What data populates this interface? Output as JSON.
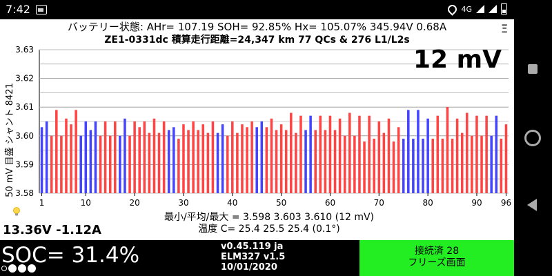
{
  "status_bar": {
    "time": "7:42",
    "network": "4G"
  },
  "header": {
    "line1": "バッテリー状態:  AHr= 107.19  SOH= 92.85%   Hx= 105.07%   345.94V  0.68A",
    "line2": "ZE1-0331dc 積算走行距離=24,347 km  77 QCs & 276 L1/L2s"
  },
  "menu_icon": "Ξ",
  "chart_data": {
    "type": "bar",
    "ylabel": "50 mV 目盛  シャント 8421",
    "ylim": [
      3.58,
      3.63
    ],
    "yticks": [
      "3.58",
      "3.59",
      "3.60",
      "3.61",
      "3.62",
      "3.63"
    ],
    "xticks": [
      1,
      10,
      20,
      30,
      40,
      50,
      60,
      70,
      80,
      90,
      96
    ],
    "overlay_label": "12 mV",
    "colors": {
      "red": "#ff4444",
      "blue": "#4444ff"
    },
    "pair_colors": [
      "blue",
      "red",
      "red",
      "red",
      "blue",
      "blue",
      "red",
      "red",
      "blue",
      "red",
      "red",
      "red",
      "red",
      "blue",
      "red",
      "red",
      "red",
      "red",
      "blue",
      "red",
      "red",
      "red",
      "blue",
      "red",
      "red",
      "red",
      "red",
      "blue",
      "red",
      "red",
      "red",
      "red",
      "red",
      "red",
      "red",
      "red",
      "red",
      "blue",
      "blue",
      "blue",
      "red",
      "red",
      "red",
      "red",
      "red",
      "red",
      "blue",
      "red"
    ],
    "cell_values": [
      3.603,
      3.605,
      3.6,
      3.609,
      3.6,
      3.606,
      3.604,
      3.609,
      3.6,
      3.605,
      3.602,
      3.605,
      3.6,
      3.605,
      3.6,
      3.605,
      3.6,
      3.606,
      3.6,
      3.605,
      3.603,
      3.605,
      3.601,
      3.606,
      3.601,
      3.605,
      3.602,
      3.603,
      3.599,
      3.604,
      3.602,
      3.605,
      3.602,
      3.604,
      3.601,
      3.605,
      3.601,
      3.604,
      3.6,
      3.605,
      3.601,
      3.604,
      3.603,
      3.605,
      3.603,
      3.605,
      3.603,
      3.606,
      3.602,
      3.604,
      3.602,
      3.608,
      3.601,
      3.607,
      3.602,
      3.607,
      3.602,
      3.607,
      3.602,
      3.607,
      3.602,
      3.606,
      3.6,
      3.608,
      3.6,
      3.607,
      3.598,
      3.607,
      3.599,
      3.605,
      3.601,
      3.606,
      3.598,
      3.603,
      3.599,
      3.609,
      3.599,
      3.609,
      3.599,
      3.606,
      3.599,
      3.607,
      3.599,
      3.61,
      3.599,
      3.606,
      3.601,
      3.608,
      3.6,
      3.607,
      3.6,
      3.607,
      3.6,
      3.607,
      3.599,
      3.604
    ]
  },
  "stats": {
    "line1": "最小/平均/最大 = 3.598 3.603 3.610  (12 mV)",
    "line2": "温度 C= 25.4  25.5  25.4  (0.1°)"
  },
  "voltage_current": "13.36V -1.12A",
  "soc": "SOC= 31.4%",
  "version": {
    "app": "v0.45.119 ja",
    "adapter": "ELM327 v1.5",
    "date": "10/01/2020"
  },
  "connection": {
    "status": "接続済 28",
    "mode": "フリーズ画面"
  }
}
